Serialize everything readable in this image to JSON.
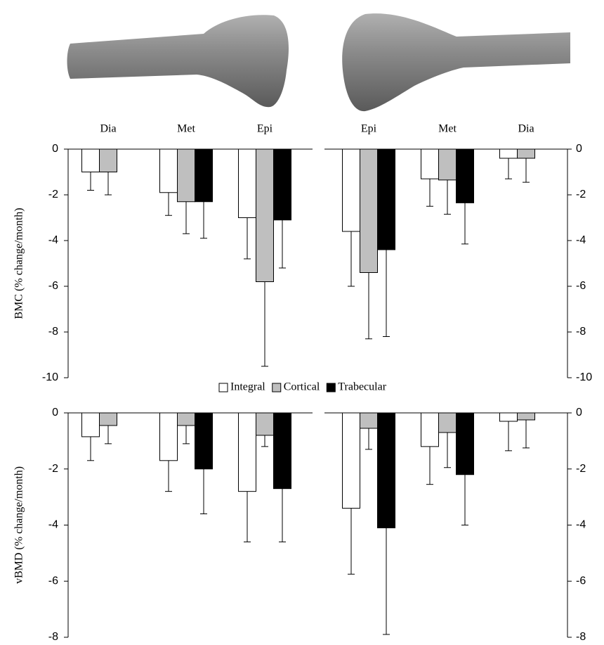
{
  "chart_data": [
    {
      "type": "bar",
      "y_label": "BMC (% change/month)",
      "categories": [
        "Dia",
        "Met",
        "Epi",
        "Epi",
        "Met",
        "Dia"
      ],
      "ylim": [
        -10,
        0
      ],
      "yticks": [
        0,
        -2,
        -4,
        -6,
        -8,
        -10
      ],
      "series": [
        {
          "name": "Integral",
          "color": "#ffffff",
          "values": [
            -1.0,
            -1.9,
            -3.0,
            -3.6,
            -1.3,
            -0.4
          ],
          "errors": [
            0.8,
            1.0,
            1.8,
            2.4,
            1.2,
            0.9
          ]
        },
        {
          "name": "Cortical",
          "color": "#bfbfbf",
          "values": [
            -1.0,
            -2.3,
            -5.8,
            -5.4,
            -1.35,
            -0.4
          ],
          "errors": [
            1.0,
            1.4,
            3.7,
            2.9,
            1.5,
            1.05
          ]
        },
        {
          "name": "Trabecular",
          "color": "#000000",
          "values": [
            null,
            -2.3,
            -3.1,
            -4.4,
            -2.35,
            null
          ],
          "errors": [
            null,
            1.6,
            2.1,
            3.8,
            1.8,
            null
          ]
        }
      ]
    },
    {
      "type": "bar",
      "y_label": "vBMD (% change/month)",
      "ylim": [
        -8,
        0
      ],
      "yticks": [
        0,
        -2,
        -4,
        -6,
        -8
      ],
      "series": [
        {
          "color": "#ffffff",
          "values": [
            -0.85,
            -1.7,
            -2.8,
            -3.4,
            -1.2,
            -0.3
          ],
          "errors": [
            0.85,
            1.1,
            1.8,
            2.35,
            1.35,
            1.05
          ]
        },
        {
          "color": "#bfbfbf",
          "values": [
            -0.45,
            -0.45,
            -0.8,
            -0.55,
            -0.7,
            -0.25
          ],
          "errors": [
            0.65,
            0.65,
            0.4,
            0.75,
            1.25,
            1.0
          ]
        },
        {
          "color": "#000000",
          "values": [
            null,
            -2.0,
            -2.7,
            -4.1,
            -2.2,
            null
          ],
          "errors": [
            null,
            1.6,
            1.9,
            3.8,
            1.8,
            null
          ]
        }
      ]
    }
  ]
}
